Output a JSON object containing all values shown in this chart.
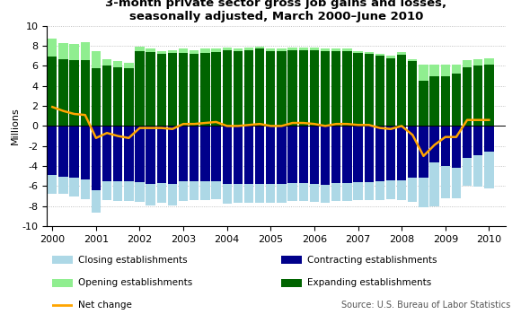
{
  "title": "3-month private sector gross job gains and losses,\nseasonally adjusted, March 2000–June 2010",
  "ylabel": "Millions",
  "source": "Source: U.S. Bureau of Labor Statistics",
  "xlim": [
    -0.5,
    41.5
  ],
  "ylim": [
    -10,
    10
  ],
  "yticks": [
    -10,
    -8,
    -6,
    -4,
    -2,
    0,
    2,
    4,
    6,
    8,
    10
  ],
  "xtick_labels": [
    "2000",
    "2001",
    "2002",
    "2003",
    "2004",
    "2005",
    "2006",
    "2007",
    "2008",
    "2009",
    "2010"
  ],
  "xtick_positions": [
    0,
    4,
    8,
    12,
    16,
    20,
    24,
    28,
    32,
    36,
    40
  ],
  "colors": {
    "closing": "#ADD8E6",
    "contracting": "#00008B",
    "opening": "#90EE90",
    "expanding": "#006400",
    "net_change": "#FFA500"
  },
  "legend": {
    "closing": "Closing establishments",
    "contracting": "Contracting establishments",
    "opening": "Opening establishments",
    "expanding": "Expanding establishments",
    "net": "Net change"
  },
  "expanding": [
    6.9,
    6.7,
    6.6,
    6.6,
    5.8,
    6.0,
    5.9,
    5.8,
    7.5,
    7.4,
    7.2,
    7.3,
    7.3,
    7.2,
    7.3,
    7.4,
    7.6,
    7.5,
    7.6,
    7.7,
    7.5,
    7.5,
    7.6,
    7.6,
    7.6,
    7.5,
    7.5,
    7.5,
    7.3,
    7.2,
    7.0,
    6.8,
    7.1,
    6.5,
    4.5,
    5.0,
    5.0,
    5.2,
    5.9,
    6.0,
    6.1
  ],
  "opening": [
    1.8,
    1.6,
    1.6,
    1.8,
    1.7,
    0.7,
    0.6,
    0.5,
    0.4,
    0.3,
    0.3,
    0.3,
    0.4,
    0.4,
    0.4,
    0.3,
    0.2,
    0.2,
    0.2,
    0.2,
    0.2,
    0.2,
    0.2,
    0.2,
    0.2,
    0.2,
    0.2,
    0.2,
    0.2,
    0.2,
    0.2,
    0.2,
    0.3,
    0.2,
    1.6,
    1.1,
    1.1,
    0.9,
    0.7,
    0.7,
    0.7
  ],
  "contracting": [
    -4.9,
    -5.1,
    -5.2,
    -5.3,
    -6.4,
    -5.5,
    -5.5,
    -5.5,
    -5.6,
    -5.8,
    -5.7,
    -5.8,
    -5.5,
    -5.5,
    -5.5,
    -5.5,
    -5.8,
    -5.8,
    -5.8,
    -5.8,
    -5.8,
    -5.8,
    -5.7,
    -5.7,
    -5.8,
    -5.9,
    -5.7,
    -5.7,
    -5.6,
    -5.6,
    -5.5,
    -5.4,
    -5.4,
    -5.2,
    -5.2,
    -3.6,
    -4.0,
    -4.2,
    -3.2,
    -2.9,
    -2.6
  ],
  "closing": [
    -1.9,
    -1.7,
    -1.8,
    -2.0,
    -2.3,
    -1.9,
    -2.0,
    -2.0,
    -2.0,
    -2.1,
    -2.0,
    -2.1,
    -2.0,
    -1.9,
    -1.9,
    -1.8,
    -2.0,
    -1.9,
    -1.9,
    -1.9,
    -1.9,
    -1.9,
    -1.8,
    -1.8,
    -1.8,
    -1.8,
    -1.8,
    -1.8,
    -1.8,
    -1.8,
    -1.9,
    -1.9,
    -2.0,
    -2.4,
    -2.9,
    -4.4,
    -3.2,
    -3.0,
    -2.8,
    -3.2,
    -3.6
  ],
  "net_change": [
    1.9,
    1.5,
    1.2,
    1.1,
    -1.2,
    -0.7,
    -1.0,
    -1.2,
    -0.2,
    -0.2,
    -0.2,
    -0.3,
    0.2,
    0.2,
    0.3,
    0.4,
    0.0,
    0.0,
    0.1,
    0.2,
    0.0,
    0.0,
    0.3,
    0.3,
    0.2,
    0.0,
    0.2,
    0.2,
    0.1,
    0.1,
    -0.2,
    -0.3,
    0.0,
    -0.9,
    -3.0,
    -1.9,
    -1.1,
    -1.1,
    0.6,
    0.6,
    0.6
  ]
}
